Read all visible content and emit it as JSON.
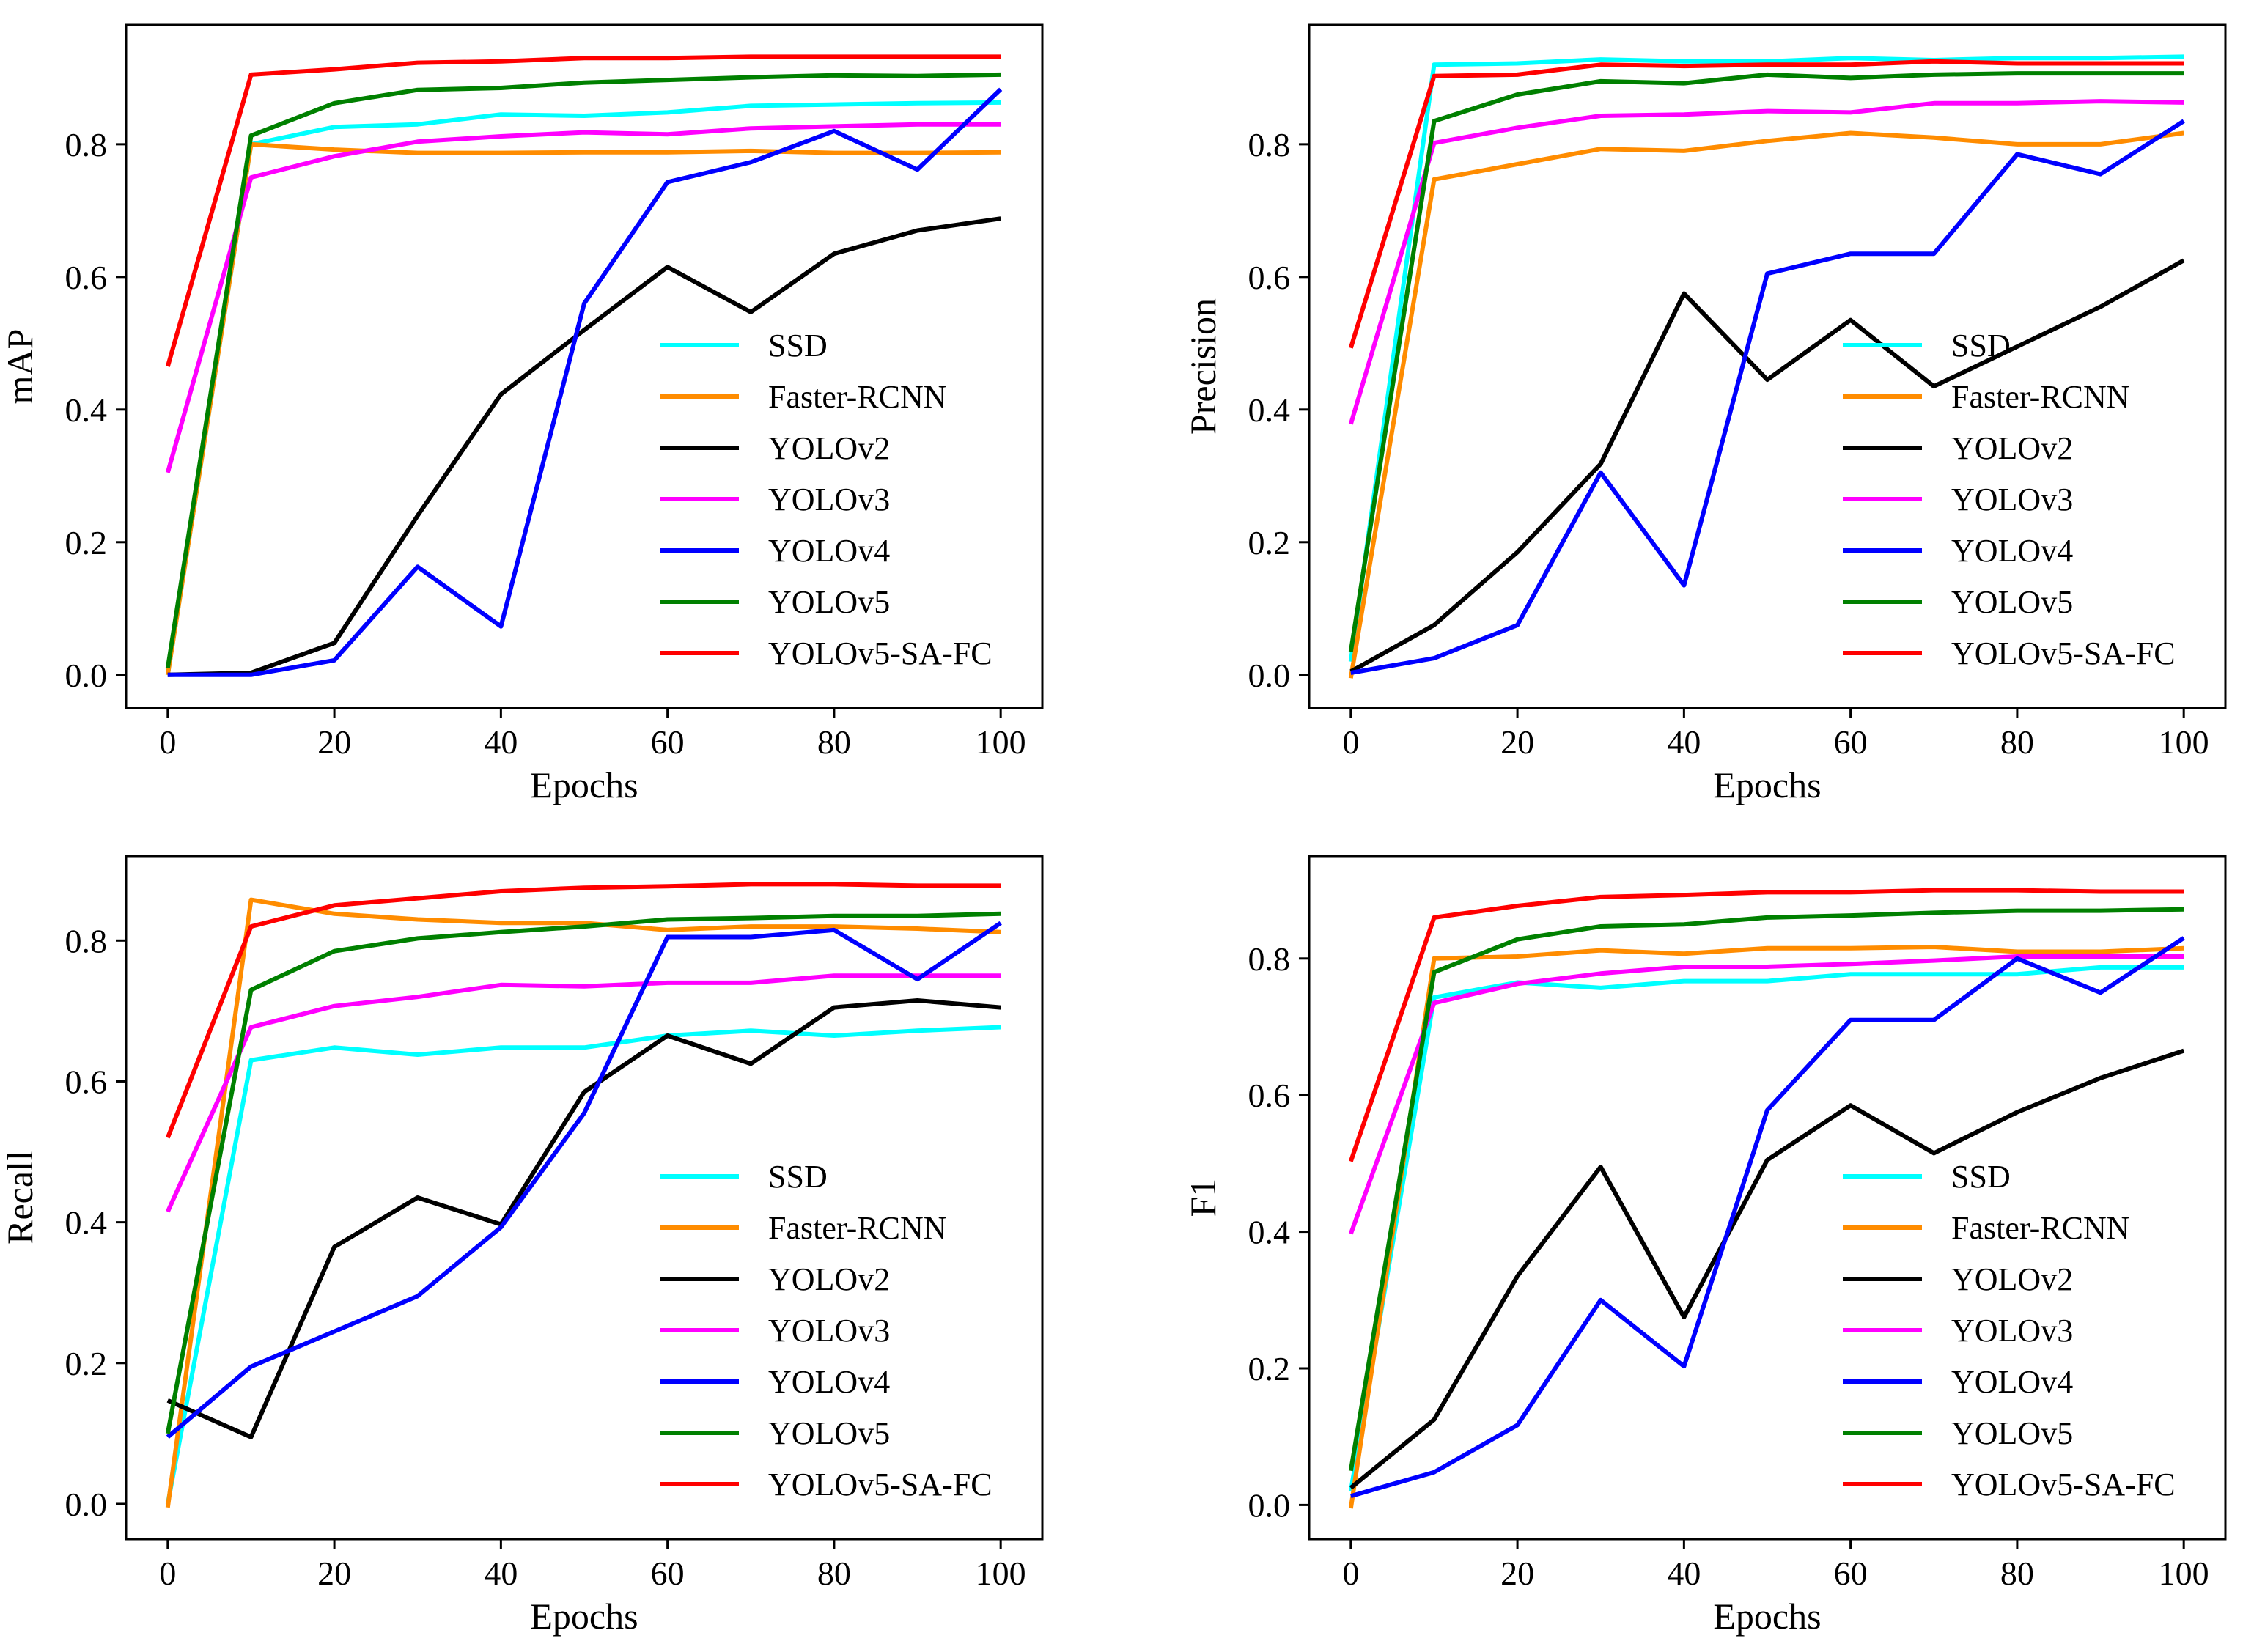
{
  "figure": {
    "background": "#ffffff"
  },
  "chart_data": [
    {
      "id": "map",
      "type": "line",
      "title": "",
      "xlabel": "Epochs",
      "ylabel": "mAP",
      "xlim": [
        -5,
        105
      ],
      "ylim": [
        -0.05,
        0.98
      ],
      "xticks": [
        0,
        20,
        40,
        60,
        80,
        100
      ],
      "xtick_labels": [
        "0",
        "20",
        "40",
        "60",
        "80",
        "100"
      ],
      "yticks": [
        0.0,
        0.2,
        0.4,
        0.6,
        0.8
      ],
      "ytick_labels": [
        "0.0",
        "0.2",
        "0.4",
        "0.6",
        "0.8"
      ],
      "grid": false,
      "legend": "lower-right",
      "x": [
        0,
        10,
        20,
        30,
        40,
        50,
        60,
        70,
        80,
        90,
        100
      ],
      "series": [
        {
          "name": "SSD",
          "color": "#00ffff",
          "values": [
            0.0,
            0.8,
            0.826,
            0.83,
            0.845,
            0.843,
            0.848,
            0.858,
            0.86,
            0.862,
            0.863
          ]
        },
        {
          "name": "Faster-RCNN",
          "color": "#ff8c00",
          "values": [
            0.0,
            0.8,
            0.792,
            0.787,
            0.787,
            0.788,
            0.788,
            0.79,
            0.787,
            0.787,
            0.788
          ]
        },
        {
          "name": "YOLOv2",
          "color": "#000000",
          "values": [
            0.0,
            0.003,
            0.048,
            0.24,
            0.423,
            0.52,
            0.615,
            0.547,
            0.635,
            0.67,
            0.688
          ]
        },
        {
          "name": "YOLOv3",
          "color": "#ff00ff",
          "values": [
            0.305,
            0.75,
            0.782,
            0.804,
            0.812,
            0.818,
            0.815,
            0.824,
            0.827,
            0.83,
            0.83
          ]
        },
        {
          "name": "YOLOv4",
          "color": "#0000ff",
          "values": [
            0.0,
            0.0,
            0.022,
            0.163,
            0.073,
            0.56,
            0.743,
            0.773,
            0.82,
            0.762,
            0.883
          ]
        },
        {
          "name": "YOLOv5",
          "color": "#008000",
          "values": [
            0.01,
            0.813,
            0.862,
            0.882,
            0.885,
            0.893,
            0.897,
            0.901,
            0.904,
            0.903,
            0.905
          ]
        },
        {
          "name": "YOLOv5-SA-FC",
          "color": "#ff0000",
          "values": [
            0.465,
            0.905,
            0.913,
            0.923,
            0.925,
            0.93,
            0.93,
            0.932,
            0.932,
            0.932,
            0.932
          ]
        }
      ]
    },
    {
      "id": "precision",
      "type": "line",
      "title": "",
      "xlabel": "Epochs",
      "ylabel": "Precision",
      "xlim": [
        -5,
        105
      ],
      "ylim": [
        -0.05,
        0.98
      ],
      "xticks": [
        0,
        20,
        40,
        60,
        80,
        100
      ],
      "xtick_labels": [
        "0",
        "20",
        "40",
        "60",
        "80",
        "100"
      ],
      "yticks": [
        0.0,
        0.2,
        0.4,
        0.6,
        0.8
      ],
      "ytick_labels": [
        "0.0",
        "0.2",
        "0.4",
        "0.6",
        "0.8"
      ],
      "grid": false,
      "legend": "lower-right",
      "x": [
        0,
        10,
        20,
        30,
        40,
        50,
        60,
        70,
        80,
        90,
        100
      ],
      "series": [
        {
          "name": "SSD",
          "color": "#00ffff",
          "values": [
            0.02,
            0.92,
            0.922,
            0.928,
            0.925,
            0.925,
            0.93,
            0.927,
            0.93,
            0.93,
            0.932
          ]
        },
        {
          "name": "Faster-RCNN",
          "color": "#ff8c00",
          "values": [
            -0.005,
            0.747,
            0.77,
            0.793,
            0.79,
            0.805,
            0.817,
            0.81,
            0.8,
            0.8,
            0.817
          ]
        },
        {
          "name": "YOLOv2",
          "color": "#000000",
          "values": [
            0.005,
            0.075,
            0.185,
            0.318,
            0.575,
            0.445,
            0.535,
            0.435,
            0.495,
            0.555,
            0.625
          ]
        },
        {
          "name": "YOLOv3",
          "color": "#ff00ff",
          "values": [
            0.378,
            0.802,
            0.825,
            0.843,
            0.845,
            0.85,
            0.848,
            0.862,
            0.862,
            0.865,
            0.863
          ]
        },
        {
          "name": "YOLOv4",
          "color": "#0000ff",
          "values": [
            0.003,
            0.025,
            0.075,
            0.305,
            0.135,
            0.605,
            0.635,
            0.635,
            0.785,
            0.755,
            0.835
          ]
        },
        {
          "name": "YOLOv5",
          "color": "#008000",
          "values": [
            0.035,
            0.835,
            0.875,
            0.895,
            0.892,
            0.905,
            0.9,
            0.905,
            0.907,
            0.907,
            0.907
          ]
        },
        {
          "name": "YOLOv5-SA-FC",
          "color": "#ff0000",
          "values": [
            0.493,
            0.903,
            0.905,
            0.92,
            0.918,
            0.92,
            0.92,
            0.925,
            0.922,
            0.922,
            0.922
          ]
        }
      ]
    },
    {
      "id": "recall",
      "type": "line",
      "title": "",
      "xlabel": "Epochs",
      "ylabel": "Recall",
      "xlim": [
        -5,
        105
      ],
      "ylim": [
        -0.05,
        0.92
      ],
      "xticks": [
        0,
        20,
        40,
        60,
        80,
        100
      ],
      "xtick_labels": [
        "0",
        "20",
        "40",
        "60",
        "80",
        "100"
      ],
      "yticks": [
        0.0,
        0.2,
        0.4,
        0.6,
        0.8
      ],
      "ytick_labels": [
        "0.0",
        "0.2",
        "0.4",
        "0.6",
        "0.8"
      ],
      "grid": false,
      "legend": "lower-right",
      "x": [
        0,
        10,
        20,
        30,
        40,
        50,
        60,
        70,
        80,
        90,
        100
      ],
      "series": [
        {
          "name": "SSD",
          "color": "#00ffff",
          "values": [
            0.0,
            0.63,
            0.648,
            0.638,
            0.648,
            0.648,
            0.665,
            0.672,
            0.665,
            0.672,
            0.677
          ]
        },
        {
          "name": "Faster-RCNN",
          "color": "#ff8c00",
          "values": [
            -0.005,
            0.858,
            0.838,
            0.83,
            0.825,
            0.825,
            0.815,
            0.82,
            0.82,
            0.817,
            0.812
          ]
        },
        {
          "name": "YOLOv2",
          "color": "#000000",
          "values": [
            0.147,
            0.095,
            0.365,
            0.435,
            0.397,
            0.585,
            0.665,
            0.625,
            0.705,
            0.715,
            0.705
          ]
        },
        {
          "name": "YOLOv3",
          "color": "#ff00ff",
          "values": [
            0.415,
            0.677,
            0.707,
            0.72,
            0.737,
            0.735,
            0.74,
            0.74,
            0.75,
            0.75,
            0.75
          ]
        },
        {
          "name": "YOLOv4",
          "color": "#0000ff",
          "values": [
            0.095,
            0.195,
            0.245,
            0.295,
            0.393,
            0.555,
            0.805,
            0.805,
            0.815,
            0.745,
            0.825
          ]
        },
        {
          "name": "YOLOv5",
          "color": "#008000",
          "values": [
            0.1,
            0.73,
            0.785,
            0.803,
            0.812,
            0.82,
            0.83,
            0.832,
            0.835,
            0.835,
            0.838
          ]
        },
        {
          "name": "YOLOv5-SA-FC",
          "color": "#ff0000",
          "values": [
            0.52,
            0.82,
            0.85,
            0.86,
            0.87,
            0.875,
            0.877,
            0.88,
            0.88,
            0.878,
            0.878
          ]
        }
      ]
    },
    {
      "id": "f1",
      "type": "line",
      "title": "",
      "xlabel": "Epochs",
      "ylabel": "F1",
      "xlim": [
        -5,
        105
      ],
      "ylim": [
        -0.05,
        0.95
      ],
      "xticks": [
        0,
        20,
        40,
        60,
        80,
        100
      ],
      "xtick_labels": [
        "0",
        "20",
        "40",
        "60",
        "80",
        "100"
      ],
      "yticks": [
        0.0,
        0.2,
        0.4,
        0.6,
        0.8
      ],
      "ytick_labels": [
        "0.0",
        "0.2",
        "0.4",
        "0.6",
        "0.8"
      ],
      "grid": false,
      "legend": "lower-right",
      "x": [
        0,
        10,
        20,
        30,
        40,
        50,
        60,
        70,
        80,
        90,
        100
      ],
      "series": [
        {
          "name": "SSD",
          "color": "#00ffff",
          "values": [
            0.02,
            0.743,
            0.765,
            0.757,
            0.767,
            0.767,
            0.777,
            0.777,
            0.777,
            0.787,
            0.787
          ]
        },
        {
          "name": "Faster-RCNN",
          "color": "#ff8c00",
          "values": [
            -0.005,
            0.8,
            0.803,
            0.812,
            0.807,
            0.815,
            0.815,
            0.817,
            0.81,
            0.81,
            0.815
          ]
        },
        {
          "name": "YOLOv2",
          "color": "#000000",
          "values": [
            0.025,
            0.125,
            0.335,
            0.495,
            0.275,
            0.505,
            0.585,
            0.515,
            0.575,
            0.625,
            0.665
          ]
        },
        {
          "name": "YOLOv3",
          "color": "#ff00ff",
          "values": [
            0.397,
            0.735,
            0.763,
            0.778,
            0.788,
            0.788,
            0.792,
            0.797,
            0.803,
            0.803,
            0.803
          ]
        },
        {
          "name": "YOLOv4",
          "color": "#0000ff",
          "values": [
            0.013,
            0.048,
            0.117,
            0.3,
            0.203,
            0.578,
            0.71,
            0.71,
            0.8,
            0.75,
            0.83
          ]
        },
        {
          "name": "YOLOv5",
          "color": "#008000",
          "values": [
            0.05,
            0.78,
            0.828,
            0.847,
            0.85,
            0.86,
            0.863,
            0.867,
            0.87,
            0.87,
            0.872
          ]
        },
        {
          "name": "YOLOv5-SA-FC",
          "color": "#ff0000",
          "values": [
            0.503,
            0.86,
            0.877,
            0.89,
            0.893,
            0.897,
            0.897,
            0.9,
            0.9,
            0.898,
            0.898
          ]
        }
      ]
    }
  ]
}
